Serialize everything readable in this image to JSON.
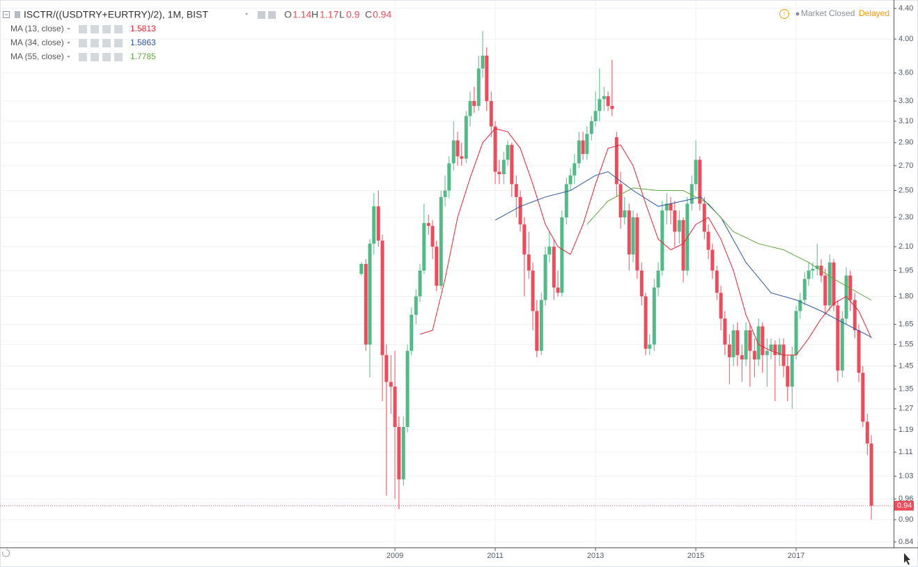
{
  "chart_data": {
    "type": "candlestick",
    "title": "ISCTR/((USDTRY+EURTRY)/2), 1M, BIST",
    "ohlc_labels": [
      "O",
      "H",
      "L",
      "C"
    ],
    "status": "Market Closed",
    "delay": "Delayed",
    "log_scale": true,
    "grid": true,
    "up_color": "#53b987",
    "down_color": "#eb4d5c",
    "xlim": [
      2001.125,
      2018.944
    ],
    "xticks": [
      2009,
      2011,
      2013,
      2015,
      2017
    ],
    "ylim": [
      0.84,
      4.4
    ],
    "yticks": [
      {
        "value": 4.4,
        "label": "4.40"
      },
      {
        "value": 4.0,
        "label": "4.00"
      },
      {
        "value": 3.6,
        "label": "3.60"
      },
      {
        "value": 3.3,
        "label": "3.30"
      },
      {
        "value": 3.1,
        "label": "3.10"
      },
      {
        "value": 2.9,
        "label": "2.90"
      },
      {
        "value": 2.7,
        "label": "2.70"
      },
      {
        "value": 2.5,
        "label": "2.50"
      },
      {
        "value": 2.3,
        "label": "2.30"
      },
      {
        "value": 2.1,
        "label": "2.10"
      },
      1.95,
      {
        "value": 1.8,
        "label": "1.80"
      },
      1.65,
      1.55,
      1.45,
      1.35,
      1.27,
      1.19,
      1.11,
      1.03,
      0.96,
      {
        "value": 0.9,
        "label": "0.90"
      },
      0.84
    ],
    "x": [
      2008.33,
      2008.42,
      2008.5,
      2008.58,
      2008.67,
      2008.75,
      2008.83,
      2008.92,
      2009.0,
      2009.08,
      2009.17,
      2009.25,
      2009.33,
      2009.42,
      2009.5,
      2009.58,
      2009.67,
      2009.75,
      2009.83,
      2009.92,
      2010.0,
      2010.08,
      2010.17,
      2010.25,
      2010.33,
      2010.42,
      2010.5,
      2010.58,
      2010.67,
      2010.75,
      2010.83,
      2010.92,
      2011.0,
      2011.08,
      2011.17,
      2011.25,
      2011.33,
      2011.42,
      2011.5,
      2011.58,
      2011.67,
      2011.75,
      2011.83,
      2011.92,
      2012.0,
      2012.08,
      2012.17,
      2012.25,
      2012.33,
      2012.42,
      2012.5,
      2012.58,
      2012.67,
      2012.75,
      2012.83,
      2012.92,
      2013.0,
      2013.08,
      2013.17,
      2013.25,
      2013.33,
      2013.42,
      2013.5,
      2013.58,
      2013.67,
      2013.75,
      2013.83,
      2013.92,
      2014.0,
      2014.08,
      2014.17,
      2014.25,
      2014.33,
      2014.42,
      2014.5,
      2014.58,
      2014.67,
      2014.75,
      2014.83,
      2014.92,
      2015.0,
      2015.08,
      2015.17,
      2015.25,
      2015.33,
      2015.42,
      2015.5,
      2015.58,
      2015.67,
      2015.75,
      2015.83,
      2015.92,
      2016.0,
      2016.08,
      2016.17,
      2016.25,
      2016.33,
      2016.42,
      2016.5,
      2016.58,
      2016.67,
      2016.75,
      2016.83,
      2016.92,
      2017.0,
      2017.08,
      2017.17,
      2017.25,
      2017.33,
      2017.42,
      2017.5,
      2017.58,
      2017.67,
      2017.75,
      2017.83,
      2017.92,
      2018.0,
      2018.08,
      2018.17,
      2018.25,
      2018.33,
      2018.42,
      2018.5
    ],
    "ohlc": [
      [
        1.93,
        2.0,
        1.92,
        1.99
      ],
      [
        1.99,
        2.02,
        1.52,
        1.55
      ],
      [
        1.55,
        2.15,
        1.4,
        2.12
      ],
      [
        2.12,
        2.48,
        2.05,
        2.38
      ],
      [
        2.38,
        2.5,
        2.1,
        2.14
      ],
      [
        2.14,
        2.18,
        1.3,
        1.5
      ],
      [
        1.5,
        1.55,
        0.97,
        1.38
      ],
      [
        1.38,
        1.5,
        1.25,
        1.36
      ],
      [
        1.36,
        1.52,
        0.96,
        1.2
      ],
      [
        1.2,
        1.24,
        0.93,
        1.02
      ],
      [
        1.02,
        1.24,
        1.0,
        1.2
      ],
      [
        1.2,
        1.55,
        1.18,
        1.52
      ],
      [
        1.52,
        1.74,
        1.5,
        1.7
      ],
      [
        1.7,
        1.84,
        1.65,
        1.8
      ],
      [
        1.8,
        1.99,
        1.77,
        1.95
      ],
      [
        1.95,
        2.4,
        1.93,
        2.26
      ],
      [
        2.26,
        2.32,
        2.18,
        2.24
      ],
      [
        2.24,
        2.28,
        2.02,
        2.1
      ],
      [
        2.1,
        2.14,
        1.83,
        1.86
      ],
      [
        1.86,
        2.5,
        1.84,
        2.45
      ],
      [
        2.45,
        2.62,
        2.38,
        2.5
      ],
      [
        2.5,
        2.78,
        2.44,
        2.72
      ],
      [
        2.72,
        3.1,
        2.66,
        2.92
      ],
      [
        2.92,
        3.0,
        2.7,
        2.78
      ],
      [
        2.78,
        2.9,
        2.7,
        2.76
      ],
      [
        2.76,
        3.2,
        2.72,
        3.15
      ],
      [
        3.15,
        3.4,
        3.05,
        3.3
      ],
      [
        3.3,
        3.45,
        3.18,
        3.25
      ],
      [
        3.25,
        3.8,
        3.2,
        3.65
      ],
      [
        3.65,
        4.1,
        3.55,
        3.8
      ],
      [
        3.8,
        3.9,
        3.2,
        3.3
      ],
      [
        3.3,
        3.4,
        2.95,
        3.05
      ],
      [
        3.05,
        3.1,
        2.55,
        2.65
      ],
      [
        2.65,
        2.75,
        2.55,
        2.63
      ],
      [
        2.63,
        2.82,
        2.55,
        2.75
      ],
      [
        2.75,
        2.92,
        2.7,
        2.88
      ],
      [
        2.88,
        2.9,
        2.45,
        2.55
      ],
      [
        2.55,
        2.62,
        2.3,
        2.45
      ],
      [
        2.45,
        2.5,
        2.2,
        2.25
      ],
      [
        2.25,
        2.3,
        1.8,
        2.05
      ],
      [
        2.05,
        2.2,
        1.9,
        1.95
      ],
      [
        1.95,
        2.0,
        1.62,
        1.72
      ],
      [
        1.72,
        1.78,
        1.49,
        1.52
      ],
      [
        1.52,
        1.82,
        1.5,
        1.78
      ],
      [
        1.78,
        2.1,
        1.75,
        2.05
      ],
      [
        2.05,
        2.2,
        2.0,
        2.1
      ],
      [
        2.1,
        2.15,
        1.78,
        1.85
      ],
      [
        1.85,
        1.95,
        1.8,
        1.82
      ],
      [
        1.82,
        2.35,
        1.8,
        2.3
      ],
      [
        2.3,
        2.6,
        2.25,
        2.55
      ],
      [
        2.55,
        2.68,
        2.5,
        2.62
      ],
      [
        2.62,
        2.8,
        2.55,
        2.72
      ],
      [
        2.72,
        3.0,
        2.68,
        2.92
      ],
      [
        2.92,
        3.0,
        2.75,
        2.8
      ],
      [
        2.8,
        3.05,
        2.75,
        2.98
      ],
      [
        2.98,
        3.15,
        2.92,
        3.1
      ],
      [
        3.1,
        3.4,
        3.05,
        3.2
      ],
      [
        3.2,
        3.65,
        3.1,
        3.32
      ],
      [
        3.32,
        3.45,
        3.2,
        3.35
      ],
      [
        3.35,
        3.4,
        3.2,
        3.25
      ],
      [
        3.25,
        3.75,
        3.15,
        3.22
      ],
      [
        2.95,
        3.0,
        2.45,
        2.55
      ],
      [
        2.55,
        2.65,
        2.22,
        2.3
      ],
      [
        2.3,
        2.45,
        2.25,
        2.35
      ],
      [
        2.35,
        2.4,
        1.95,
        2.05
      ],
      [
        2.05,
        2.35,
        2.0,
        2.3
      ],
      [
        2.3,
        2.33,
        1.9,
        1.95
      ],
      [
        1.95,
        2.0,
        1.75,
        1.8
      ],
      [
        1.8,
        1.82,
        1.5,
        1.53
      ],
      [
        1.53,
        1.6,
        1.5,
        1.55
      ],
      [
        1.55,
        1.9,
        1.52,
        1.85
      ],
      [
        1.85,
        2.0,
        1.8,
        1.95
      ],
      [
        1.95,
        2.42,
        1.92,
        2.35
      ],
      [
        2.35,
        2.48,
        2.25,
        2.4
      ],
      [
        2.4,
        2.45,
        2.25,
        2.35
      ],
      [
        2.35,
        2.42,
        2.1,
        2.2
      ],
      [
        2.2,
        2.35,
        2.12,
        2.28
      ],
      [
        2.28,
        2.3,
        1.88,
        1.95
      ],
      [
        1.95,
        2.45,
        1.92,
        2.4
      ],
      [
        2.4,
        2.62,
        2.35,
        2.55
      ],
      [
        2.55,
        2.92,
        2.5,
        2.75
      ],
      [
        2.75,
        2.78,
        2.35,
        2.4
      ],
      [
        2.4,
        2.45,
        2.15,
        2.2
      ],
      [
        2.2,
        2.25,
        2.02,
        2.08
      ],
      [
        2.08,
        2.12,
        1.9,
        1.95
      ],
      [
        1.95,
        1.98,
        1.78,
        1.82
      ],
      [
        1.82,
        1.86,
        1.62,
        1.68
      ],
      [
        1.68,
        1.72,
        1.5,
        1.55
      ],
      [
        1.55,
        1.6,
        1.37,
        1.49
      ],
      [
        1.49,
        1.65,
        1.45,
        1.62
      ],
      [
        1.62,
        1.66,
        1.45,
        1.5
      ],
      [
        1.5,
        1.55,
        1.38,
        1.48
      ],
      [
        1.48,
        1.66,
        1.45,
        1.62
      ],
      [
        1.62,
        1.65,
        1.36,
        1.52
      ],
      [
        1.52,
        1.58,
        1.4,
        1.48
      ],
      [
        1.48,
        1.68,
        1.45,
        1.64
      ],
      [
        1.64,
        1.66,
        1.42,
        1.5
      ],
      [
        1.5,
        1.58,
        1.36,
        1.52
      ],
      [
        1.52,
        1.58,
        1.48,
        1.55
      ],
      [
        1.55,
        1.57,
        1.3,
        1.5
      ],
      [
        1.5,
        1.58,
        1.45,
        1.55
      ],
      [
        1.55,
        1.58,
        1.4,
        1.45
      ],
      [
        1.45,
        1.5,
        1.3,
        1.36
      ],
      [
        1.36,
        1.54,
        1.27,
        1.5
      ],
      [
        1.5,
        1.75,
        1.48,
        1.72
      ],
      [
        1.72,
        1.82,
        1.68,
        1.78
      ],
      [
        1.78,
        1.94,
        1.75,
        1.9
      ],
      [
        1.9,
        2.0,
        1.86,
        1.95
      ],
      [
        1.95,
        2.0,
        1.9,
        1.96
      ],
      [
        1.96,
        2.12,
        1.92,
        1.98
      ],
      [
        1.98,
        2.02,
        1.88,
        1.92
      ],
      [
        1.92,
        1.96,
        1.7,
        1.75
      ],
      [
        1.75,
        2.05,
        1.72,
        2.0
      ],
      [
        2.0,
        2.02,
        1.72,
        1.75
      ],
      [
        1.75,
        1.78,
        1.38,
        1.43
      ],
      [
        1.43,
        1.72,
        1.4,
        1.68
      ],
      [
        1.68,
        1.97,
        1.65,
        1.92
      ],
      [
        1.92,
        1.95,
        1.72,
        1.78
      ],
      [
        1.78,
        1.82,
        1.58,
        1.62
      ],
      [
        1.62,
        1.65,
        1.38,
        1.42
      ],
      [
        1.42,
        1.45,
        1.2,
        1.22
      ],
      [
        1.22,
        1.25,
        1.1,
        1.14
      ],
      [
        1.14,
        1.17,
        0.9,
        0.94
      ]
    ],
    "series": [
      {
        "name": "MA (13, close)",
        "color": "#e8212f",
        "x": [
          2009.5,
          2009.75,
          2010.0,
          2010.25,
          2010.5,
          2010.75,
          2011.0,
          2011.25,
          2011.5,
          2011.75,
          2012.0,
          2012.25,
          2012.5,
          2012.75,
          2013.0,
          2013.25,
          2013.5,
          2013.75,
          2014.0,
          2014.25,
          2014.5,
          2014.75,
          2015.0,
          2015.25,
          2015.5,
          2015.75,
          2016.0,
          2016.25,
          2016.5,
          2016.75,
          2017.0,
          2017.25,
          2017.5,
          2017.75,
          2018.0,
          2018.25,
          2018.5
        ],
        "values": [
          1.6,
          1.62,
          1.9,
          2.3,
          2.6,
          2.9,
          3.03,
          3.0,
          2.85,
          2.55,
          2.25,
          2.1,
          2.05,
          2.25,
          2.55,
          2.85,
          2.88,
          2.7,
          2.4,
          2.15,
          2.08,
          2.12,
          2.25,
          2.3,
          2.15,
          1.95,
          1.7,
          1.55,
          1.52,
          1.5,
          1.5,
          1.58,
          1.68,
          1.76,
          1.8,
          1.72,
          1.5813
        ]
      },
      {
        "name": "MA (34, close)",
        "color": "#2a56a8",
        "x": [
          2011.0,
          2011.5,
          2012.0,
          2012.5,
          2013.0,
          2013.25,
          2013.75,
          2014.25,
          2014.75,
          2015.1,
          2015.5,
          2016.0,
          2016.5,
          2017.0,
          2017.5,
          2018.0,
          2018.5
        ],
        "values": [
          2.28,
          2.38,
          2.45,
          2.5,
          2.62,
          2.65,
          2.5,
          2.38,
          2.42,
          2.45,
          2.3,
          2.0,
          1.82,
          1.78,
          1.72,
          1.65,
          1.5863
        ]
      },
      {
        "name": "MA (55, close)",
        "color": "#5fa83b",
        "x": [
          2012.83,
          2013.25,
          2013.75,
          2014.25,
          2014.75,
          2015.25,
          2015.75,
          2016.25,
          2016.75,
          2017.25,
          2017.75,
          2018.5
        ],
        "values": [
          2.25,
          2.42,
          2.52,
          2.5,
          2.5,
          2.4,
          2.2,
          2.12,
          2.08,
          2.0,
          1.9,
          1.7785
        ]
      }
    ]
  }
}
